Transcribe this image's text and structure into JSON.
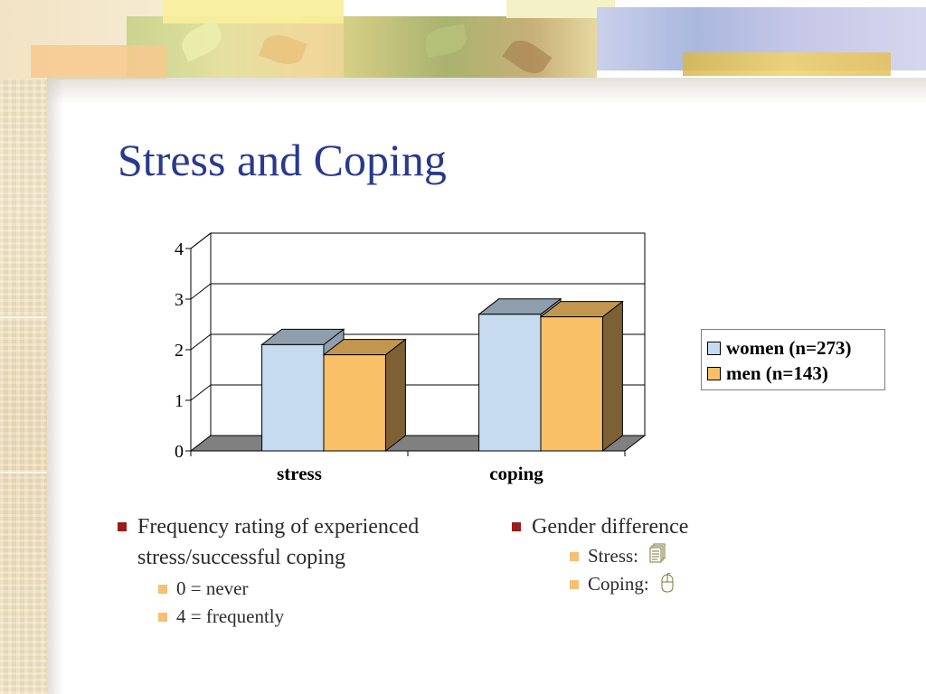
{
  "slide": {
    "title": "Stress and Coping"
  },
  "bullets_left": {
    "main": "Frequency rating of experienced stress/successful coping",
    "main_line1": "Frequency rating of experienced",
    "main_line2": "stress/successful coping",
    "sub": [
      "0 = never",
      "4 = frequently"
    ]
  },
  "bullets_right": {
    "main": "Gender difference",
    "sub": [
      {
        "label": "Stress:",
        "icon": "document-stack-icon"
      },
      {
        "label": "Coping:",
        "icon": "computer-mouse-icon"
      }
    ]
  },
  "colors": {
    "title": "#293a8c",
    "women": "#c6dbf0",
    "men": "#fac067",
    "floor": "#808080",
    "bullet_main": "#9b1a1a",
    "bullet_sub": "#f5c073"
  },
  "chart_data": {
    "type": "bar",
    "style": "3d-clustered-column",
    "categories": [
      "stress",
      "coping"
    ],
    "series": [
      {
        "name": "women (n=273)",
        "values": [
          2.1,
          2.7
        ],
        "color": "#c6dbf0"
      },
      {
        "name": "men (n=143)",
        "values": [
          1.9,
          2.65
        ],
        "color": "#fac067"
      }
    ],
    "yticks": [
      "0",
      "1",
      "2",
      "3",
      "4"
    ],
    "ylim": [
      0,
      4
    ],
    "grid": true,
    "legend_position": "right"
  }
}
